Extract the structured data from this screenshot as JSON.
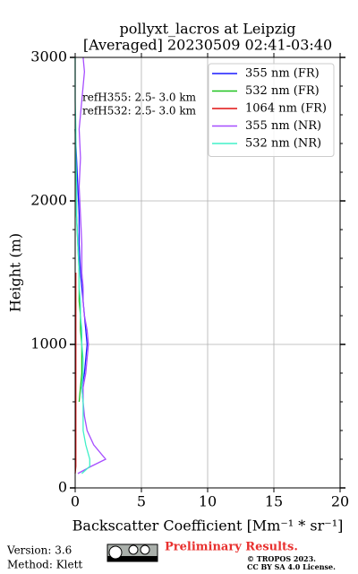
{
  "chart_data": {
    "type": "line",
    "title": "pollyxt_lacros at Leipzig",
    "subtitle": "[Averaged] 20230509 02:41-03:40",
    "x_label": "Backscatter Coefficient [Mm⁻¹ * sr⁻¹]",
    "y_label": "Height (m)",
    "annotations": [
      "refH355:  2.5- 3.0 km",
      "refH532:  2.5- 3.0 km"
    ],
    "y": [
      100,
      150,
      200,
      300,
      400,
      500,
      600,
      700,
      800,
      900,
      1000,
      1100,
      1200,
      1300,
      1400,
      1500,
      1700,
      1900,
      2100,
      2300,
      2500,
      2700,
      2900,
      3000
    ],
    "series": [
      {
        "name": "355 nm (FR)",
        "color": "#1a1aff",
        "values": [
          null,
          null,
          null,
          null,
          null,
          null,
          0.6,
          0.5,
          0.7,
          0.8,
          0.9,
          0.8,
          0.7,
          0.6,
          0.5,
          0.4,
          0.3,
          0.3,
          0.2,
          0.1,
          0,
          null,
          null,
          null
        ]
      },
      {
        "name": "532 nm (FR)",
        "color": "#1fc21f",
        "values": [
          null,
          null,
          null,
          null,
          null,
          null,
          0.3,
          0.4,
          0.5,
          0.5,
          0.5,
          0.4,
          0.4,
          0.3,
          0.3,
          0.3,
          0.2,
          0.1,
          0.1,
          0.05,
          0,
          null,
          null,
          null
        ]
      },
      {
        "name": "1064 nm (FR)",
        "color": "#e01010",
        "values": [
          0,
          0.05,
          0.05,
          0.05,
          0.05,
          0.05,
          0.05,
          0.05,
          0.05,
          0.05,
          0.05,
          0.05,
          0.05,
          0.05,
          0.05,
          0.05,
          null,
          null,
          null,
          null,
          null,
          null,
          null,
          null
        ]
      },
      {
        "name": "355 nm (NR)",
        "color": "#a64dff",
        "values": [
          0.2,
          1.2,
          2.3,
          1.4,
          0.9,
          0.7,
          0.6,
          0.6,
          0.8,
          0.9,
          1.0,
          0.9,
          0.7,
          0.6,
          0.6,
          0.5,
          0.5,
          0.4,
          0.3,
          0.4,
          0.3,
          0.5,
          0.7,
          0.6
        ]
      },
      {
        "name": "532 nm (NR)",
        "color": "#40f0c8",
        "values": [
          0.5,
          1.1,
          1.1,
          0.8,
          0.6,
          0.6,
          0.6,
          0.5,
          0.6,
          0.6,
          0.5,
          0.5,
          0.4,
          0.4,
          0.3,
          0.3,
          0.2,
          0.1,
          0.1,
          0.05,
          0.05,
          0,
          0,
          0
        ]
      }
    ],
    "xlim": [
      0,
      20
    ],
    "xticks": [
      0,
      5,
      10,
      15,
      20
    ],
    "ylim": [
      0,
      3000
    ],
    "yticks": [
      0,
      1000,
      2000,
      3000
    ],
    "grid": true,
    "legend": "upper right"
  },
  "footer": {
    "version": "Version: 3.6",
    "method": "Method: Klett",
    "notice": "Preliminary Results.",
    "copyright": "© TROPOS 2023.",
    "license": "CC BY SA 4.0 License."
  }
}
